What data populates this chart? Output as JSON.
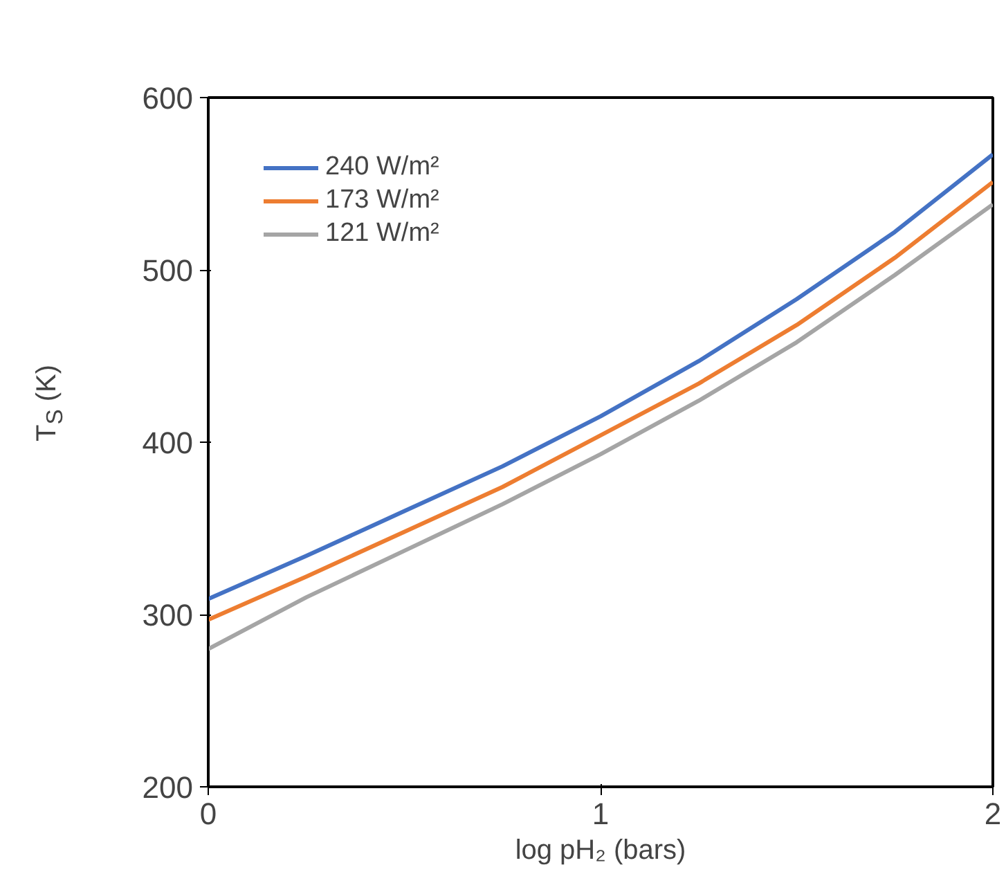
{
  "chart_data": {
    "type": "line",
    "xlabel": "log pH₂ (bars)",
    "ylabel": "T$_{S}$ (K)",
    "x": [
      0,
      0.25,
      0.5,
      0.75,
      1,
      1.25,
      1.5,
      1.75,
      2
    ],
    "series": [
      {
        "name": "240 W/m²",
        "color": "#4472c4",
        "values": [
          309,
          334,
          360,
          386,
          415,
          447,
          483,
          522,
          567
        ]
      },
      {
        "name": "173 W/m²",
        "color": "#ed7d31",
        "values": [
          297,
          322,
          348,
          374,
          404,
          434,
          468,
          507,
          551
        ]
      },
      {
        "name": "121 W/m²",
        "color": "#a5a5a5",
        "values": [
          280,
          310,
          337,
          364,
          393,
          424,
          458,
          497,
          538
        ]
      }
    ],
    "xlim": [
      0,
      2
    ],
    "xticks": [
      0,
      1,
      2
    ],
    "ylim": [
      200,
      600
    ],
    "yticks": [
      200,
      300,
      400,
      500,
      600
    ],
    "grid": false,
    "legend": "top left",
    "line_style": "solid",
    "marker": "none"
  }
}
